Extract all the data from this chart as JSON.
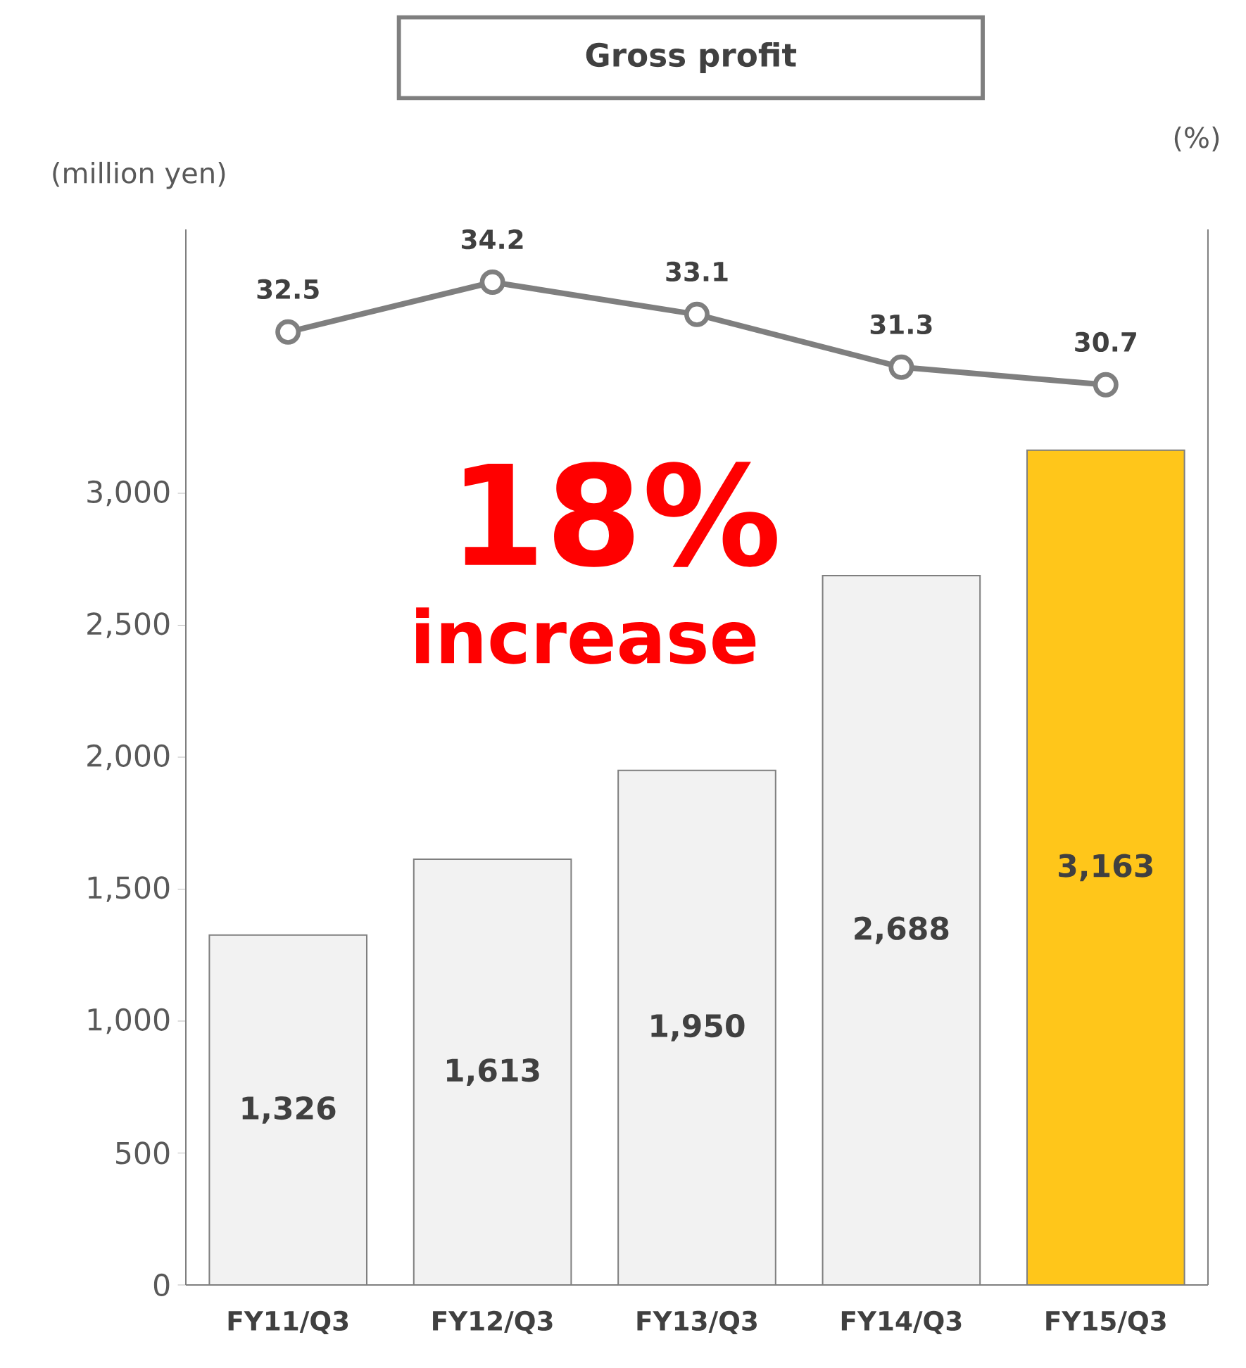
{
  "chart_data": {
    "type": "bar",
    "title": "Gross profit",
    "ylabel": "(million yen)",
    "y2label": "(%)",
    "categories": [
      "FY11/Q3",
      "FY12/Q3",
      "FY13/Q3",
      "FY14/Q3",
      "FY15/Q3"
    ],
    "series": [
      {
        "colors": [
          "#f2f2f2",
          "#f2f2f2",
          "#f2f2f2",
          "#f2f2f2",
          "#ffc61a"
        ],
        "values": [
          1326,
          1613,
          1950,
          2688,
          3163
        ],
        "value_labels": [
          "1,326",
          "1,613",
          "1,950",
          "2,688",
          "3,163"
        ]
      },
      {
        "type": "line",
        "axis": "y2",
        "color": "#7f7f7f",
        "marker": "circle",
        "line_style": "solid",
        "values": [
          32.5,
          34.2,
          33.1,
          31.3,
          30.7
        ],
        "value_labels": [
          "32.5",
          "34.2",
          "33.1",
          "31.3",
          "30.7"
        ]
      }
    ],
    "ylim": [
      0,
      4000
    ],
    "yticks": [
      0,
      500,
      {
        "value": 1000,
        "label": "1,000"
      },
      {
        "value": 1500,
        "label": "1,500"
      },
      {
        "value": 2000,
        "label": "2,000"
      },
      {
        "value": 2500,
        "label": "2,500"
      },
      {
        "value": 3000,
        "label": "3,000"
      }
    ],
    "y2lim": [
      0,
      36
    ],
    "tick_labels": "xy",
    "annotations": [
      "18%",
      "increase"
    ],
    "grid": false
  }
}
